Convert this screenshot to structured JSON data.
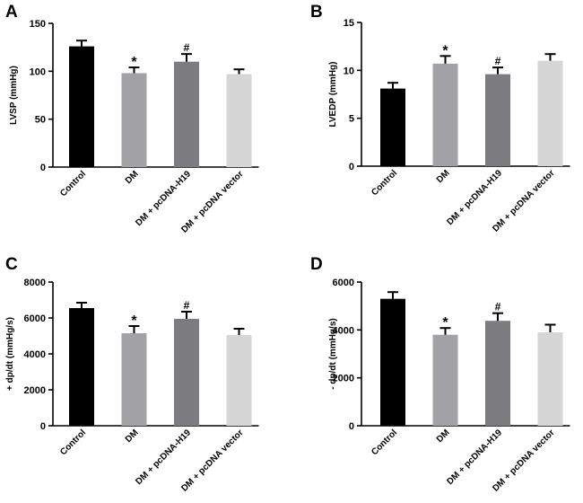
{
  "chart_data": [
    {
      "panel": "A",
      "type": "bar",
      "categories": [
        "Control",
        "DM",
        "DM + pcDNA-H19",
        "DM + pcDNA vector"
      ],
      "values": [
        126,
        98,
        110,
        97
      ],
      "errors": [
        6,
        6,
        8,
        5
      ],
      "colors": [
        "#000000",
        "#a2a2a6",
        "#7c7c80",
        "#d6d6d6"
      ],
      "significance": [
        "",
        "*",
        "#",
        ""
      ],
      "ylabel": "LVSP (mmHg)",
      "ylim": [
        0,
        150
      ],
      "yticks": [
        "0",
        "50",
        "100",
        "150"
      ],
      "ytick_values": [
        0,
        50,
        100,
        150
      ]
    },
    {
      "panel": "B",
      "type": "bar",
      "categories": [
        "Control",
        "DM",
        "DM + pcDNA-H19",
        "DM + pcDNA vector"
      ],
      "values": [
        8.1,
        10.7,
        9.6,
        11.0
      ],
      "errors": [
        0.6,
        0.8,
        0.7,
        0.7
      ],
      "colors": [
        "#000000",
        "#a2a2a6",
        "#7c7c80",
        "#d6d6d6"
      ],
      "significance": [
        "",
        "*",
        "#",
        ""
      ],
      "ylabel": "LVEDP (mmHg)",
      "ylim": [
        0,
        15
      ],
      "yticks": [
        "0",
        "5",
        "10",
        "15"
      ],
      "ytick_values": [
        0,
        5,
        10,
        15
      ]
    },
    {
      "panel": "C",
      "type": "bar",
      "categories": [
        "Control",
        "DM",
        "DM + pcDNA-H19",
        "DM + pcDNA vector"
      ],
      "values": [
        6550,
        5150,
        5950,
        5050
      ],
      "errors": [
        300,
        400,
        400,
        350
      ],
      "colors": [
        "#000000",
        "#a2a2a6",
        "#7c7c80",
        "#d6d6d6"
      ],
      "significance": [
        "",
        "*",
        "#",
        ""
      ],
      "ylabel": "+ dp/dt (mmHg/s)",
      "ylim": [
        0,
        8000
      ],
      "yticks": [
        "0",
        "2000",
        "4000",
        "6000",
        "8000"
      ],
      "ytick_values": [
        0,
        2000,
        4000,
        6000,
        8000
      ]
    },
    {
      "panel": "D",
      "type": "bar",
      "categories": [
        "Control",
        "DM",
        "DM + pcDNA-H19",
        "DM + pcDNA vector"
      ],
      "values": [
        5300,
        3800,
        4380,
        3900
      ],
      "errors": [
        280,
        280,
        320,
        320
      ],
      "colors": [
        "#000000",
        "#a2a2a6",
        "#7c7c80",
        "#d6d6d6"
      ],
      "significance": [
        "",
        "*",
        "#",
        ""
      ],
      "ylabel": "- dp/dt (mmHg/s)",
      "ylim": [
        0,
        6000
      ],
      "yticks": [
        "0",
        "2000",
        "4000",
        "6000"
      ],
      "ytick_values": [
        0,
        2000,
        4000,
        6000
      ]
    }
  ]
}
